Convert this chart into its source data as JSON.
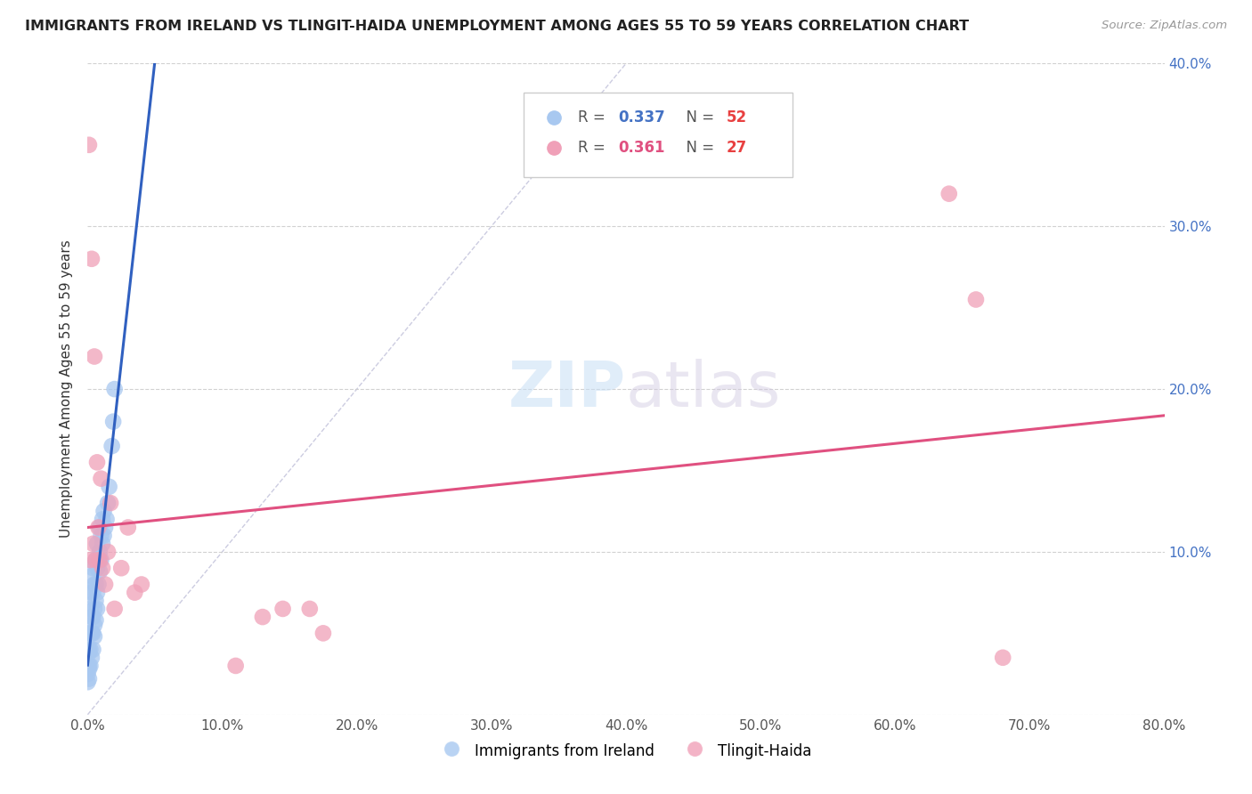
{
  "title": "IMMIGRANTS FROM IRELAND VS TLINGIT-HAIDA UNEMPLOYMENT AMONG AGES 55 TO 59 YEARS CORRELATION CHART",
  "source": "Source: ZipAtlas.com",
  "ylabel": "Unemployment Among Ages 55 to 59 years",
  "xlim": [
    0,
    0.8
  ],
  "ylim": [
    0,
    0.4
  ],
  "xticks": [
    0.0,
    0.1,
    0.2,
    0.3,
    0.4,
    0.5,
    0.6,
    0.7,
    0.8
  ],
  "yticks": [
    0.0,
    0.1,
    0.2,
    0.3,
    0.4
  ],
  "series1_name": "Immigrants from Ireland",
  "series1_color": "#a8c8f0",
  "series1_R": 0.337,
  "series1_N": 52,
  "series1_x": [
    0.0,
    0.0,
    0.001,
    0.001,
    0.001,
    0.001,
    0.001,
    0.001,
    0.002,
    0.002,
    0.002,
    0.002,
    0.002,
    0.003,
    0.003,
    0.003,
    0.003,
    0.004,
    0.004,
    0.004,
    0.004,
    0.004,
    0.005,
    0.005,
    0.005,
    0.005,
    0.006,
    0.006,
    0.006,
    0.006,
    0.007,
    0.007,
    0.007,
    0.007,
    0.008,
    0.008,
    0.009,
    0.009,
    0.009,
    0.01,
    0.01,
    0.011,
    0.011,
    0.012,
    0.012,
    0.013,
    0.014,
    0.015,
    0.016,
    0.018,
    0.019,
    0.02
  ],
  "series1_y": [
    0.02,
    0.025,
    0.022,
    0.028,
    0.03,
    0.038,
    0.04,
    0.05,
    0.03,
    0.04,
    0.05,
    0.065,
    0.075,
    0.035,
    0.05,
    0.06,
    0.085,
    0.04,
    0.05,
    0.06,
    0.075,
    0.09,
    0.048,
    0.055,
    0.065,
    0.08,
    0.058,
    0.07,
    0.08,
    0.095,
    0.065,
    0.075,
    0.09,
    0.105,
    0.08,
    0.095,
    0.088,
    0.1,
    0.115,
    0.095,
    0.11,
    0.105,
    0.12,
    0.11,
    0.125,
    0.115,
    0.12,
    0.13,
    0.14,
    0.165,
    0.18,
    0.2
  ],
  "series2_name": "Tlingit-Haida",
  "series2_color": "#f0a0b8",
  "series2_R": 0.361,
  "series2_N": 27,
  "series2_x": [
    0.001,
    0.002,
    0.003,
    0.004,
    0.005,
    0.006,
    0.007,
    0.008,
    0.009,
    0.01,
    0.011,
    0.013,
    0.015,
    0.017,
    0.02,
    0.025,
    0.03,
    0.035,
    0.04,
    0.11,
    0.13,
    0.145,
    0.165,
    0.175,
    0.64,
    0.66,
    0.68
  ],
  "series2_y": [
    0.35,
    0.095,
    0.28,
    0.105,
    0.22,
    0.095,
    0.155,
    0.115,
    0.095,
    0.145,
    0.09,
    0.08,
    0.1,
    0.13,
    0.065,
    0.09,
    0.115,
    0.075,
    0.08,
    0.03,
    0.06,
    0.065,
    0.065,
    0.05,
    0.32,
    0.255,
    0.035
  ],
  "trend1_color": "#3060c0",
  "trend2_color": "#e05080",
  "legend_R_color1": "#4472c4",
  "legend_N_color1": "#e84040",
  "legend_R_color2": "#e05080",
  "legend_N_color2": "#e84040",
  "background_color": "#ffffff",
  "grid_color": "#cccccc",
  "diagonal_color": "#aaaacc",
  "watermark": "ZIPatlas",
  "watermark_zip_color": "#c8dff5",
  "watermark_atlas_color": "#d0c8e0"
}
